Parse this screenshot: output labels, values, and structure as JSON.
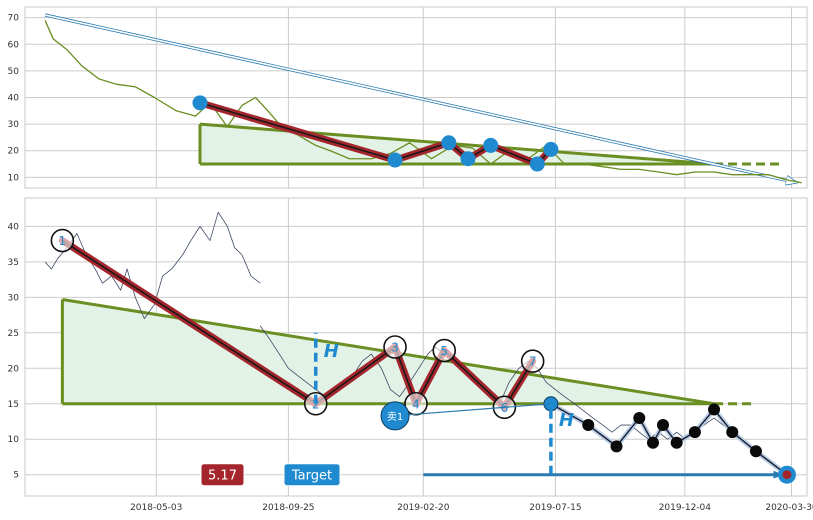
{
  "chart_data": [
    {
      "type": "line",
      "panel": "overview",
      "yticks": [
        10,
        20,
        30,
        40,
        50,
        60,
        70
      ],
      "ylim": [
        6,
        74
      ],
      "xlim": [
        "2017-12-10",
        "2020-04-16"
      ],
      "grid": true,
      "price_series": {
        "color": "#6b8e23",
        "x": [
          "2018-01-01",
          "2018-01-10",
          "2018-01-25",
          "2018-02-10",
          "2018-03-01",
          "2018-03-20",
          "2018-04-10",
          "2018-05-01",
          "2018-05-25",
          "2018-06-15",
          "2018-07-01",
          "2018-07-20",
          "2018-08-05",
          "2018-08-20",
          "2018-09-05",
          "2018-09-20",
          "2018-10-05",
          "2018-10-25",
          "2018-11-10",
          "2018-12-01",
          "2018-12-25",
          "2019-01-15",
          "2019-02-05",
          "2019-03-01",
          "2019-03-25",
          "2019-04-15",
          "2019-05-05",
          "2019-05-25",
          "2019-06-15",
          "2019-07-05",
          "2019-07-25",
          "2019-08-15",
          "2019-09-05",
          "2019-09-25",
          "2019-10-15",
          "2019-11-05",
          "2019-11-25",
          "2019-12-15",
          "2020-01-05",
          "2020-01-25",
          "2020-02-15",
          "2020-03-05",
          "2020-03-25",
          "2020-04-10"
        ],
        "y": [
          69,
          62,
          58,
          52,
          47,
          45,
          44,
          40,
          35,
          33,
          38,
          29,
          37,
          40,
          34,
          28,
          26,
          22,
          20,
          17,
          17,
          19,
          23,
          17,
          22,
          21,
          15,
          20,
          17,
          22,
          15,
          15,
          14,
          13,
          13,
          12,
          11,
          12,
          12,
          11,
          11,
          11,
          9,
          8
        ]
      },
      "zigzag_points": {
        "x": [
          "2018-06-20",
          "2019-01-20",
          "2019-03-20",
          "2019-04-10",
          "2019-05-05",
          "2019-06-25",
          "2019-07-10"
        ],
        "y": [
          38,
          16.5,
          23,
          17,
          22,
          15,
          20.5
        ]
      },
      "triangle": {
        "x": [
          "2018-06-20",
          "2020-01-05"
        ],
        "upper": [
          30,
          15
        ],
        "lower": [
          15,
          15
        ],
        "lower_extension_end": "2020-03-20"
      },
      "long_arrow": {
        "x": [
          "2018-01-01",
          "2020-04-05"
        ],
        "y": [
          71,
          8
        ]
      }
    },
    {
      "type": "line",
      "panel": "main",
      "yticks": [
        5,
        10,
        15,
        20,
        25,
        30,
        35,
        40
      ],
      "ylim": [
        2,
        44
      ],
      "xlim": [
        "2017-12-10",
        "2020-04-16"
      ],
      "xticks": [
        "2018-05-03",
        "2018-09-25",
        "2019-02-20",
        "2019-07-15",
        "2019-12-04",
        "2020-03-30"
      ],
      "grid": true,
      "price_series": {
        "color": "#3d4a66",
        "x": [
          "2018-01-01",
          "2018-01-08",
          "2018-01-15",
          "2018-01-25",
          "2018-02-05",
          "2018-02-15",
          "2018-02-25",
          "2018-03-05",
          "2018-03-15",
          "2018-03-25",
          "2018-04-01",
          "2018-04-10",
          "2018-04-20",
          "2018-05-01",
          "2018-05-10",
          "2018-05-20",
          "2018-06-01",
          "2018-06-10",
          "2018-06-20",
          "2018-07-01",
          "2018-07-10",
          "2018-07-20",
          "2018-07-28",
          "2018-08-05",
          "2018-08-15",
          "2018-08-25"
        ],
        "y": [
          35,
          34,
          35.5,
          37,
          39,
          36,
          34,
          32,
          33,
          31,
          34,
          30,
          27,
          29,
          33,
          34,
          36,
          38,
          40,
          38,
          42,
          40,
          37,
          36,
          33,
          32
        ]
      },
      "price_series_tail": {
        "x": [
          "2018-08-25",
          "2018-09-05",
          "2018-09-15",
          "2018-09-25",
          "2018-10-05",
          "2018-10-15",
          "2018-10-25",
          "2018-11-05",
          "2018-11-15",
          "2018-11-25",
          "2018-12-05",
          "2018-12-15",
          "2018-12-25",
          "2019-01-05",
          "2019-01-15",
          "2019-01-25",
          "2019-02-05",
          "2019-02-15",
          "2019-02-25",
          "2019-03-05",
          "2019-03-15",
          "2019-03-25",
          "2019-04-05",
          "2019-04-15",
          "2019-04-25",
          "2019-05-05",
          "2019-05-15",
          "2019-05-25",
          "2019-06-05",
          "2019-06-15",
          "2019-06-25",
          "2019-07-05",
          "2019-07-15",
          "2019-07-25",
          "2019-08-05",
          "2019-08-15",
          "2019-08-25",
          "2019-09-05",
          "2019-09-15",
          "2019-09-25",
          "2019-10-05",
          "2019-10-15",
          "2019-10-25",
          "2019-11-05",
          "2019-11-15",
          "2019-11-25",
          "2019-12-05",
          "2019-12-15",
          "2019-12-25",
          "2020-01-05",
          "2020-01-15",
          "2020-01-25",
          "2020-02-05",
          "2020-02-15",
          "2020-02-25",
          "2020-03-05",
          "2020-03-15",
          "2020-03-25"
        ],
        "y": [
          26,
          24,
          22,
          20,
          19,
          18,
          17,
          16,
          17,
          18,
          19,
          21,
          22,
          20,
          17,
          16,
          18,
          20,
          22,
          23,
          22,
          21,
          20,
          19,
          18,
          16,
          15,
          18,
          20,
          21,
          20,
          18,
          17,
          16,
          15,
          14,
          13,
          12,
          11,
          12,
          12,
          11,
          10,
          11,
          10,
          11,
          10,
          11,
          12,
          13,
          12,
          11,
          10,
          9,
          8,
          7,
          6,
          5
        ]
      },
      "zigzag_points": {
        "labels": [
          "1",
          "2",
          "3",
          "4",
          "5",
          "6",
          "7"
        ],
        "x": [
          "2018-01-20",
          "2018-10-25",
          "2019-01-20",
          "2019-02-12",
          "2019-03-15",
          "2019-05-20",
          "2019-06-20"
        ],
        "y": [
          38,
          15,
          23,
          15,
          22.5,
          14.5,
          21
        ]
      },
      "triangle": {
        "x": [
          "2018-01-20",
          "2020-01-05"
        ],
        "upper": [
          29.7,
          15
        ],
        "lower": [
          15,
          15
        ],
        "lower_extension_end": "2020-02-20"
      },
      "projection_points": {
        "x": [
          "2019-07-10",
          "2019-08-20",
          "2019-09-20",
          "2019-10-15",
          "2019-10-30",
          "2019-11-10",
          "2019-11-25",
          "2019-12-15",
          "2020-01-05",
          "2020-01-25",
          "2020-02-20",
          "2020-03-25"
        ],
        "y": [
          15,
          12,
          9,
          13,
          9.5,
          12,
          9.5,
          11,
          14.2,
          11,
          8.3,
          5
        ]
      },
      "sell_marker": {
        "label": "卖1",
        "x": "2019-01-20",
        "y": 13.3,
        "ray_to": {
          "x": "2019-07-10",
          "y": 15
        }
      },
      "h_markers": [
        {
          "label": "H",
          "x": "2018-10-25",
          "from": 15,
          "to": 25
        },
        {
          "label": "H",
          "x": "2019-07-10",
          "from": 5,
          "to": 15
        }
      ],
      "badge_value": "5.17",
      "target_label": "Target",
      "target_arrow": {
        "from": "2019-02-20",
        "to": "2020-03-20",
        "y": 5
      },
      "target_point": {
        "x": "2020-03-25",
        "y": 5
      }
    }
  ]
}
